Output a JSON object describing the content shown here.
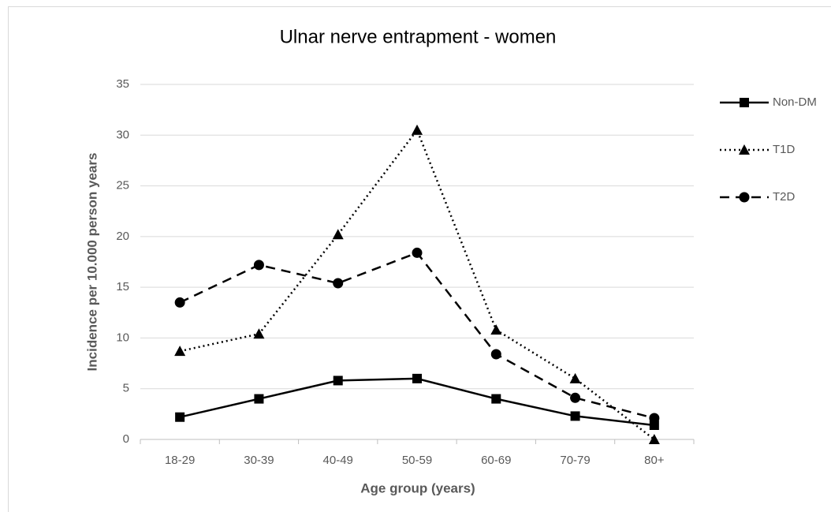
{
  "chart_data": {
    "type": "line",
    "title": "Ulnar nerve entrapment - women",
    "x_label": "Age group (years)",
    "y_label": "Incidence per 10.000 person years",
    "categories": [
      "18-29",
      "30-39",
      "40-49",
      "50-59",
      "60-69",
      "70-79",
      "80+"
    ],
    "series": [
      {
        "name": "Non-DM",
        "color": "#000000",
        "line_style": "solid",
        "marker": "square",
        "values": [
          2.2,
          4.0,
          5.8,
          6.0,
          4.0,
          2.3,
          1.4
        ]
      },
      {
        "name": "T1D",
        "color": "#000000",
        "line_style": "dotted",
        "marker": "triangle",
        "values": [
          8.7,
          10.4,
          20.2,
          30.5,
          10.8,
          6.0,
          0
        ]
      },
      {
        "name": "T2D",
        "color": "#000000",
        "line_style": "dashed",
        "marker": "circle",
        "values": [
          13.5,
          17.2,
          15.4,
          18.4,
          8.4,
          4.1,
          2.1
        ]
      }
    ],
    "ylim": [
      0,
      35
    ],
    "yticks": [
      0,
      5,
      10,
      15,
      20,
      25,
      30,
      35
    ],
    "grid": true,
    "legend": "right"
  }
}
